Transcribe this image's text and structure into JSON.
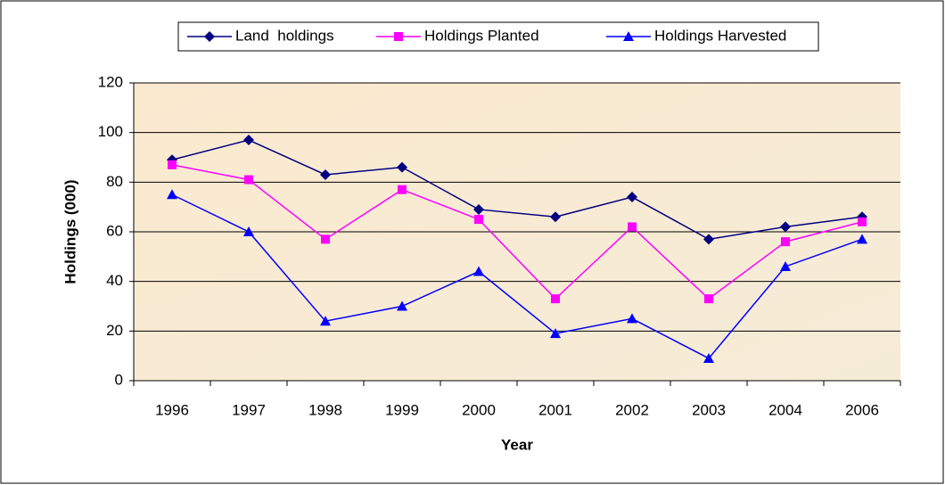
{
  "chart_data": {
    "type": "line",
    "x_label": "Year",
    "y_label": "Holdings (000)",
    "categories": [
      "1996",
      "1997",
      "1998",
      "1999",
      "2000",
      "2001",
      "2002",
      "2003",
      "2004",
      "2006"
    ],
    "series": [
      {
        "name": "Land  holdings",
        "color": "#000080",
        "marker": "diamond",
        "values": [
          89,
          97,
          83,
          86,
          69,
          66,
          74,
          57,
          62,
          66
        ]
      },
      {
        "name": "Holdings Planted",
        "color": "#ff00ff",
        "marker": "square",
        "values": [
          87,
          81,
          57,
          77,
          65,
          33,
          62,
          33,
          56,
          64
        ]
      },
      {
        "name": "Holdings Harvested",
        "color": "#0000ff",
        "marker": "triangle",
        "values": [
          75,
          60,
          24,
          30,
          44,
          19,
          25,
          9,
          46,
          57
        ]
      }
    ],
    "ylim": [
      0,
      120
    ],
    "yticks": [
      0,
      20,
      40,
      60,
      80,
      100,
      120
    ],
    "grid": true,
    "legend": "top"
  }
}
